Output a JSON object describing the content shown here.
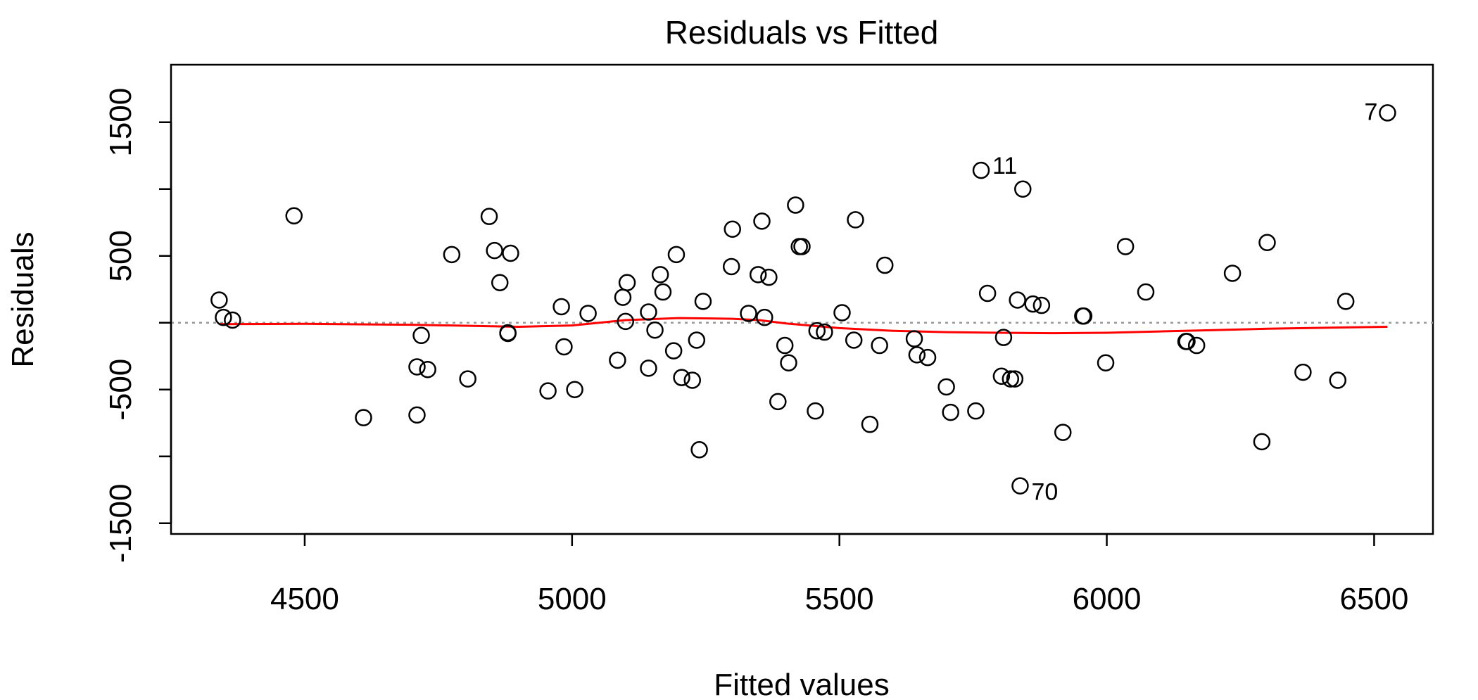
{
  "chart_data": {
    "type": "scatter",
    "title": "Residuals vs Fitted",
    "xlabel": "Fitted values",
    "ylabel": "Residuals",
    "xlim": [
      4250,
      6610
    ],
    "ylim": [
      -1580,
      1930
    ],
    "x_ticks": [
      4500,
      5000,
      5500,
      6000,
      6500
    ],
    "y_ticks": [
      -1500,
      -1000,
      -500,
      0,
      500,
      1000,
      1500
    ],
    "y_tick_labels": [
      "-1500",
      "",
      "-500",
      "",
      "500",
      "",
      "1500"
    ],
    "grid": false,
    "legend": "none",
    "reference_line": {
      "y": 0,
      "style": "dotted",
      "color": "#999999"
    },
    "colors": {
      "points": "#000000",
      "smoother": "#ff0000",
      "reference": "#999999"
    },
    "points": [
      {
        "x": 4340,
        "y": 170
      },
      {
        "x": 4348,
        "y": 40
      },
      {
        "x": 4365,
        "y": 20
      },
      {
        "x": 4480,
        "y": 800
      },
      {
        "x": 4610,
        "y": -710
      },
      {
        "x": 4710,
        "y": -690
      },
      {
        "x": 4710,
        "y": -330
      },
      {
        "x": 4718,
        "y": -95
      },
      {
        "x": 4730,
        "y": -350
      },
      {
        "x": 4775,
        "y": 510
      },
      {
        "x": 4805,
        "y": -420
      },
      {
        "x": 4845,
        "y": 795
      },
      {
        "x": 4855,
        "y": 540
      },
      {
        "x": 4865,
        "y": 300
      },
      {
        "x": 4880,
        "y": -80
      },
      {
        "x": 4880,
        "y": -75
      },
      {
        "x": 4885,
        "y": 520
      },
      {
        "x": 4955,
        "y": -510
      },
      {
        "x": 4980,
        "y": 120
      },
      {
        "x": 4985,
        "y": -180
      },
      {
        "x": 5005,
        "y": -500
      },
      {
        "x": 5030,
        "y": 70
      },
      {
        "x": 5085,
        "y": -280
      },
      {
        "x": 5095,
        "y": 190
      },
      {
        "x": 5100,
        "y": 10
      },
      {
        "x": 5103,
        "y": 300
      },
      {
        "x": 5143,
        "y": 80
      },
      {
        "x": 5143,
        "y": -340
      },
      {
        "x": 5155,
        "y": -55
      },
      {
        "x": 5165,
        "y": 360
      },
      {
        "x": 5170,
        "y": 230
      },
      {
        "x": 5190,
        "y": -210
      },
      {
        "x": 5195,
        "y": 510
      },
      {
        "x": 5205,
        "y": -410
      },
      {
        "x": 5225,
        "y": -430
      },
      {
        "x": 5233,
        "y": -130
      },
      {
        "x": 5238,
        "y": -950
      },
      {
        "x": 5245,
        "y": 160
      },
      {
        "x": 5298,
        "y": 420
      },
      {
        "x": 5300,
        "y": 700
      },
      {
        "x": 5330,
        "y": 70
      },
      {
        "x": 5348,
        "y": 360
      },
      {
        "x": 5355,
        "y": 760
      },
      {
        "x": 5360,
        "y": 40
      },
      {
        "x": 5368,
        "y": 340
      },
      {
        "x": 5385,
        "y": -590
      },
      {
        "x": 5398,
        "y": -170
      },
      {
        "x": 5405,
        "y": -300
      },
      {
        "x": 5418,
        "y": 880
      },
      {
        "x": 5425,
        "y": 570
      },
      {
        "x": 5430,
        "y": 570
      },
      {
        "x": 5455,
        "y": -660
      },
      {
        "x": 5458,
        "y": -60
      },
      {
        "x": 5472,
        "y": -70
      },
      {
        "x": 5505,
        "y": 75
      },
      {
        "x": 5527,
        "y": -130
      },
      {
        "x": 5530,
        "y": 770
      },
      {
        "x": 5557,
        "y": -760
      },
      {
        "x": 5575,
        "y": -170
      },
      {
        "x": 5585,
        "y": 430
      },
      {
        "x": 5640,
        "y": -120
      },
      {
        "x": 5645,
        "y": -240
      },
      {
        "x": 5665,
        "y": -260
      },
      {
        "x": 5700,
        "y": -480
      },
      {
        "x": 5708,
        "y": -670
      },
      {
        "x": 5755,
        "y": -660
      },
      {
        "x": 5765,
        "y": 1140,
        "label": "11"
      },
      {
        "x": 5777,
        "y": 220
      },
      {
        "x": 5803,
        "y": -400
      },
      {
        "x": 5807,
        "y": -110
      },
      {
        "x": 5820,
        "y": -420
      },
      {
        "x": 5828,
        "y": -420
      },
      {
        "x": 5833,
        "y": 170
      },
      {
        "x": 5838,
        "y": -1220,
        "label": "70"
      },
      {
        "x": 5843,
        "y": 1000
      },
      {
        "x": 5862,
        "y": 140
      },
      {
        "x": 5878,
        "y": 130
      },
      {
        "x": 5918,
        "y": -820
      },
      {
        "x": 5955,
        "y": 50
      },
      {
        "x": 5957,
        "y": 50
      },
      {
        "x": 5998,
        "y": -300
      },
      {
        "x": 6035,
        "y": 570
      },
      {
        "x": 6073,
        "y": 230
      },
      {
        "x": 6148,
        "y": -140
      },
      {
        "x": 6150,
        "y": -140
      },
      {
        "x": 6168,
        "y": -170
      },
      {
        "x": 6235,
        "y": 370
      },
      {
        "x": 6290,
        "y": -890
      },
      {
        "x": 6300,
        "y": 600
      },
      {
        "x": 6367,
        "y": -370
      },
      {
        "x": 6432,
        "y": -430
      },
      {
        "x": 6447,
        "y": 160
      },
      {
        "x": 6525,
        "y": 1570,
        "label": "7"
      }
    ],
    "smoother": {
      "x": [
        4340,
        4500,
        4700,
        4900,
        5000,
        5100,
        5200,
        5300,
        5350,
        5400,
        5500,
        5600,
        5700,
        5800,
        5900,
        6000,
        6100,
        6200,
        6300,
        6400,
        6525
      ],
      "y": [
        -10,
        -8,
        -15,
        -30,
        -20,
        20,
        35,
        30,
        20,
        -5,
        -40,
        -60,
        -70,
        -75,
        -78,
        -75,
        -65,
        -55,
        -45,
        -38,
        -30
      ]
    }
  }
}
